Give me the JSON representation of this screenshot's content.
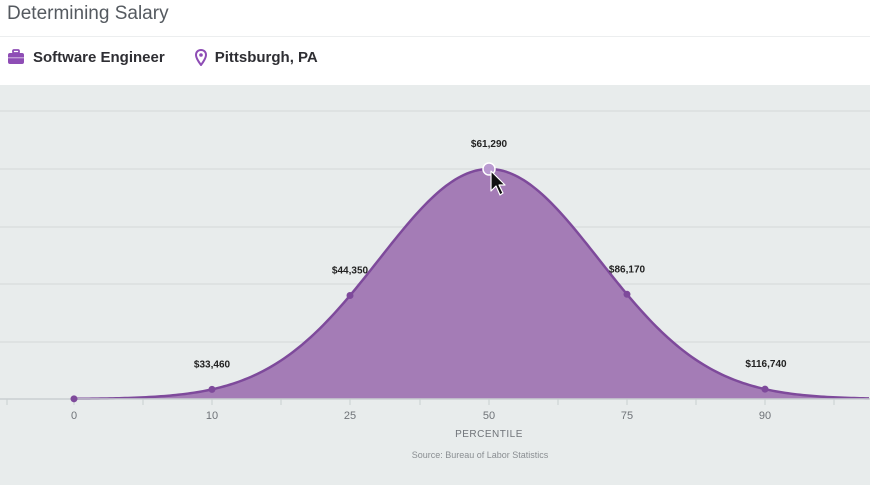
{
  "page": {
    "title": "Determining Salary"
  },
  "meta": {
    "job_title": "Software Engineer",
    "location": "Pittsburgh, PA"
  },
  "colors": {
    "accent": "#8e4db5",
    "fill": "#a47cb6",
    "line": "#7e4a9b",
    "panel_bg": "#e8ecec"
  },
  "chart_data": {
    "type": "area",
    "x": [
      0,
      10,
      25,
      50,
      75,
      90
    ],
    "values": [
      null,
      33460,
      44350,
      61290,
      86170,
      116740
    ],
    "labels": [
      "",
      "$33,460",
      "$44,350",
      "$61,290",
      "$86,170",
      "$116,740"
    ],
    "tick_labels": [
      "0",
      "10",
      "25",
      "50",
      "75",
      "90"
    ],
    "xlabel": "PERCENTILE",
    "source": "Source: Bureau of Labor Statistics",
    "highlight_index": 3,
    "grid": true,
    "shape": "bell curve"
  }
}
